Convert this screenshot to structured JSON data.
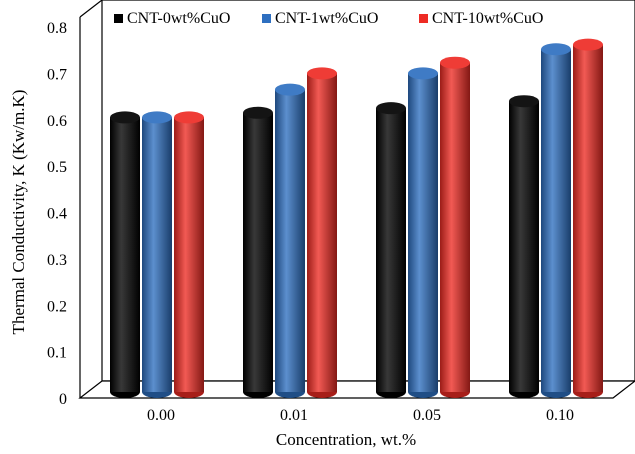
{
  "chart_data": {
    "type": "bar",
    "title": "",
    "xlabel": "Concentration, wt.%",
    "ylabel": "Thermal Conductivity, K (Kw/m.K)",
    "categories": [
      "0.00",
      "0.01",
      "0.05",
      "0.10"
    ],
    "ylim": [
      0,
      0.8
    ],
    "yticks": [
      "0",
      "0.1",
      "0.2",
      "0.3",
      "0.4",
      "0.5",
      "0.6",
      "0.7",
      "0.8"
    ],
    "grid": false,
    "legend_position": "top",
    "style": "3d-cylinder",
    "series": [
      {
        "name": "CNT-0wt%CuO",
        "color": "#000000",
        "values": [
          0.605,
          0.615,
          0.625,
          0.64
        ]
      },
      {
        "name": "CNT-1wt%CuO",
        "color": "#2e6fc0",
        "values": [
          0.605,
          0.665,
          0.7,
          0.752
        ]
      },
      {
        "name": "CNT-10wt%CuO",
        "color": "#ee2b24",
        "values": [
          0.605,
          0.7,
          0.723,
          0.762
        ]
      }
    ]
  }
}
